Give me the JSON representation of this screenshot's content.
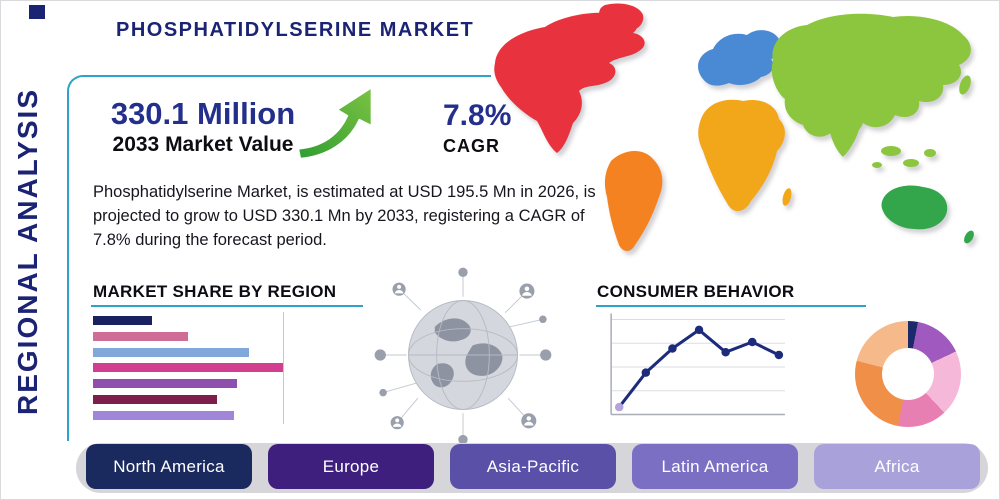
{
  "page": {
    "title": "PHOSPHATIDYLSERINE MARKET",
    "side_label": "REGIONAL ANALYSIS"
  },
  "stats": {
    "market_value": "330.1 Million",
    "market_value_label": "2033 Market Value",
    "cagr_value": "7.8%",
    "cagr_label": "CAGR"
  },
  "description": "Phosphatidylserine Market, is estimated at USD 195.5 Mn in 2026, is projected to grow to USD 330.1 Mn by 2033, registering a CAGR of 7.8% during the forecast period.",
  "colors": {
    "accent_navy": "#1b2375",
    "accent_teal": "#2ea3c9",
    "arrow_green_dark": "#2f9e33",
    "arrow_green_light": "#7cc242",
    "bottom_bar_gray": "#d6d6da"
  },
  "map_colors": {
    "north_america": "#e8333f",
    "south_america": "#f58220",
    "europe": "#4a8ad4",
    "africa": "#f2a71b",
    "asia": "#8cc63f",
    "australia": "#33a54a"
  },
  "regions": [
    {
      "label": "North America",
      "color": "#1b2a5e"
    },
    {
      "label": "Europe",
      "color": "#3f1f7d"
    },
    {
      "label": "Asia-Pacific",
      "color": "#5a50a8"
    },
    {
      "label": "Latin America",
      "color": "#7b6fc4"
    },
    {
      "label": "Africa",
      "color": "#a9a1d9"
    }
  ],
  "chart_data": [
    {
      "id": "market-share-bars",
      "type": "bar",
      "title": "MARKET SHARE BY REGION",
      "orientation": "horizontal",
      "values": [
        31,
        50,
        82,
        100,
        76,
        65,
        74
      ],
      "colors": [
        "#1a2161",
        "#cf6d97",
        "#82a8db",
        "#d23f8f",
        "#8e4fae",
        "#7d1f4a",
        "#9f86d8"
      ],
      "xlim": [
        0,
        100
      ]
    },
    {
      "id": "consumer-behavior-line",
      "type": "line",
      "title": "CONSUMER BEHAVIOR",
      "x": [
        1,
        2,
        3,
        4,
        5,
        6,
        7
      ],
      "values": [
        8,
        45,
        71,
        91,
        67,
        78,
        64
      ],
      "ylim": [
        0,
        100
      ],
      "line_color": "#1d2b7d",
      "point_color": "#1d2b7d",
      "first_point_color": "#b5a3e0",
      "grid": true
    },
    {
      "id": "region-donut",
      "type": "pie",
      "donut": true,
      "values": [
        3,
        15,
        20,
        15,
        26,
        21
      ],
      "colors": [
        "#1b2a6b",
        "#a05abf",
        "#f5b8d8",
        "#e87fb3",
        "#f09048",
        "#f5b98a"
      ]
    }
  ]
}
